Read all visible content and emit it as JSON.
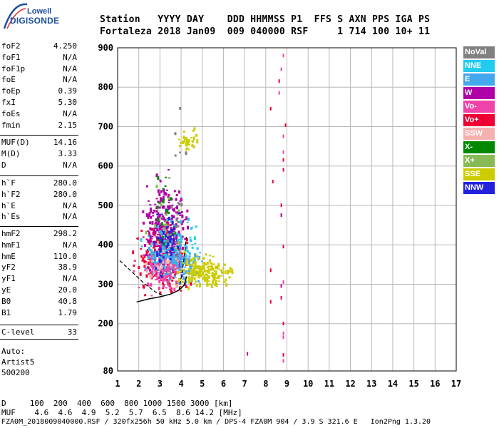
{
  "logo": {
    "line1": "Lowell",
    "line2": "DIGISONDE"
  },
  "header": {
    "labels": "Station   YYYY DAY    DDD HHMMSS P1  FFS S AXN PPS IGA PS",
    "values": "Fortaleza 2018 Jan09  009 040000 RSF     1 714 100 10+ 11"
  },
  "params_group1": [
    {
      "key": "foF2",
      "value": "4.250"
    },
    {
      "key": "foF1",
      "value": "N/A"
    },
    {
      "key": "foF1p",
      "value": "N/A"
    },
    {
      "key": "foE",
      "value": "N/A"
    },
    {
      "key": "foEp",
      "value": "0.39"
    },
    {
      "key": "fxI",
      "value": "5.30"
    },
    {
      "key": "foEs",
      "value": "N/A"
    },
    {
      "key": "fmin",
      "value": "2.15"
    }
  ],
  "params_group2": [
    {
      "key": "MUF(D)",
      "value": "14.16"
    },
    {
      "key": "M(D)",
      "value": "3.33"
    },
    {
      "key": "D",
      "value": "N/A"
    }
  ],
  "params_group3": [
    {
      "key": "h`F",
      "value": "280.0"
    },
    {
      "key": "h`F2",
      "value": "280.0"
    },
    {
      "key": "h`E",
      "value": "N/A"
    },
    {
      "key": "h`Es",
      "value": "N/A"
    }
  ],
  "params_group4": [
    {
      "key": "hmF2",
      "value": "298.2"
    },
    {
      "key": "hmF1",
      "value": "N/A"
    },
    {
      "key": "hmE",
      "value": "110.0"
    },
    {
      "key": "yF2",
      "value": "38.9"
    },
    {
      "key": "yF1",
      "value": "N/A"
    },
    {
      "key": "yE",
      "value": "20.0"
    },
    {
      "key": "B0",
      "value": "40.8"
    },
    {
      "key": "B1",
      "value": "1.79"
    }
  ],
  "params_group5": [
    {
      "key": "C-level",
      "value": "33"
    }
  ],
  "auto": {
    "line1": "Auto:",
    "line2": "Artist5",
    "line3": "500200"
  },
  "dtable": {
    "line1": "D     100  200  400  600  800 1000 1500 3000 [km]",
    "line2": "MUF    4.6  4.6  4.9  5.2  5.7  6.5  8.6 14.2 [MHz]"
  },
  "footer": "FZA0M_2018009040000.RSF / 320fx256h 50 kHz 5.0 km / DPS-4 FZA0M 904 / 3.9 S 321.6 E   Ion2Png 1.3.20",
  "legend": [
    {
      "label": "NoVal",
      "color": "#808080"
    },
    {
      "label": "NNE",
      "color": "#22ccee"
    },
    {
      "label": "E",
      "color": "#44a8ee"
    },
    {
      "label": "W",
      "color": "#b000a8"
    },
    {
      "label": "Vo-",
      "color": "#ee44aa"
    },
    {
      "label": "Vo+",
      "color": "#ee0033"
    },
    {
      "label": "SSW",
      "color": "#f5b0b0"
    },
    {
      "label": "X-",
      "color": "#008800"
    },
    {
      "label": "X+",
      "color": "#88bb55"
    },
    {
      "label": "SSE",
      "color": "#cccc00"
    },
    {
      "label": "NNW",
      "color": "#2222dd"
    }
  ],
  "chart_data": {
    "type": "scatter",
    "xlabel": "",
    "ylabel": "",
    "xlim": [
      1,
      17
    ],
    "ylim": [
      80,
      900
    ],
    "x_ticks": [
      1,
      2,
      3,
      4,
      5,
      6,
      7,
      8,
      9,
      10,
      11,
      12,
      13,
      14,
      15,
      16,
      17
    ],
    "y_ticks": [
      80,
      200,
      300,
      400,
      500,
      600,
      700,
      800,
      900
    ],
    "grid": true,
    "legend_position": "right",
    "clusters": [
      {
        "direction": "Vo+",
        "x_range": [
          1.5,
          4.8
        ],
        "y_range": [
          255,
          480
        ],
        "count": 220
      },
      {
        "direction": "W",
        "x_range": [
          1.6,
          4.6
        ],
        "y_range": [
          270,
          620
        ],
        "count": 260
      },
      {
        "direction": "NNE",
        "x_range": [
          1.8,
          5.3
        ],
        "y_range": [
          300,
          480
        ],
        "count": 140
      },
      {
        "direction": "E",
        "x_range": [
          1.8,
          5.5
        ],
        "y_range": [
          300,
          420
        ],
        "count": 160
      },
      {
        "direction": "SSE",
        "x_range": [
          3.3,
          6.7
        ],
        "y_range": [
          280,
          390
        ],
        "count": 190
      },
      {
        "direction": "SSE",
        "x_range": [
          3.6,
          5.1
        ],
        "y_range": [
          620,
          720
        ],
        "count": 30
      },
      {
        "direction": "Vo-",
        "x_range": [
          1.6,
          4.4
        ],
        "y_range": [
          260,
          400
        ],
        "count": 90
      },
      {
        "direction": "NNW",
        "x_range": [
          2.4,
          4.0
        ],
        "y_range": [
          300,
          520
        ],
        "count": 60
      },
      {
        "direction": "X-",
        "x_range": [
          2.5,
          3.8
        ],
        "y_range": [
          330,
          640
        ],
        "count": 18
      },
      {
        "direction": "X+",
        "x_range": [
          2.2,
          4.2
        ],
        "y_range": [
          300,
          620
        ],
        "count": 20
      },
      {
        "direction": "SSW",
        "x_range": [
          1.8,
          4.5
        ],
        "y_range": [
          280,
          420
        ],
        "count": 30
      },
      {
        "direction": "NoVal",
        "x_range": [
          3.0,
          4.5
        ],
        "y_range": [
          300,
          820
        ],
        "count": 15
      }
    ],
    "column_points": [
      {
        "direction": "Vo-",
        "x": 8.8,
        "y": 885
      },
      {
        "direction": "Vo-",
        "x": 8.7,
        "y": 850
      },
      {
        "direction": "Vo+",
        "x": 8.6,
        "y": 820
      },
      {
        "direction": "Vo-",
        "x": 8.6,
        "y": 790
      },
      {
        "direction": "Vo+",
        "x": 8.2,
        "y": 750
      },
      {
        "direction": "Vo+",
        "x": 8.9,
        "y": 708
      },
      {
        "direction": "Vo-",
        "x": 8.8,
        "y": 680
      },
      {
        "direction": "Vo-",
        "x": 8.8,
        "y": 640
      },
      {
        "direction": "Vo+",
        "x": 8.8,
        "y": 620
      },
      {
        "direction": "Vo+",
        "x": 8.8,
        "y": 595
      },
      {
        "direction": "Vo+",
        "x": 8.3,
        "y": 565
      },
      {
        "direction": "Vo+",
        "x": 8.7,
        "y": 505
      },
      {
        "direction": "W",
        "x": 8.7,
        "y": 480
      },
      {
        "direction": "Vo+",
        "x": 8.8,
        "y": 400
      },
      {
        "direction": "Vo+",
        "x": 8.2,
        "y": 340
      },
      {
        "direction": "Vo-",
        "x": 8.8,
        "y": 310
      },
      {
        "direction": "W",
        "x": 8.7,
        "y": 300
      },
      {
        "direction": "Vo+",
        "x": 8.7,
        "y": 270
      },
      {
        "direction": "Vo+",
        "x": 8.2,
        "y": 260
      },
      {
        "direction": "Vo+",
        "x": 8.8,
        "y": 205
      },
      {
        "direction": "Vo-",
        "x": 8.8,
        "y": 180
      },
      {
        "direction": "Vo-",
        "x": 8.8,
        "y": 170
      },
      {
        "direction": "Vo+",
        "x": 8.8,
        "y": 125
      },
      {
        "direction": "Vo-",
        "x": 8.8,
        "y": 110
      },
      {
        "direction": "W",
        "x": 7.1,
        "y": 128
      }
    ],
    "trace_O": [
      [
        1.9,
        255
      ],
      [
        2.5,
        263
      ],
      [
        3.0,
        268
      ],
      [
        3.5,
        275
      ],
      [
        3.9,
        285
      ],
      [
        4.15,
        298
      ],
      [
        4.25,
        320
      ]
    ],
    "profile_dashed": [
      [
        1.1,
        360
      ],
      [
        1.7,
        330
      ],
      [
        2.3,
        300
      ],
      [
        2.8,
        280
      ],
      [
        3.2,
        270
      ]
    ],
    "profile_dashed_upper": [
      [
        3.9,
        285
      ],
      [
        4.05,
        330
      ],
      [
        4.15,
        370
      ],
      [
        4.25,
        420
      ]
    ]
  }
}
